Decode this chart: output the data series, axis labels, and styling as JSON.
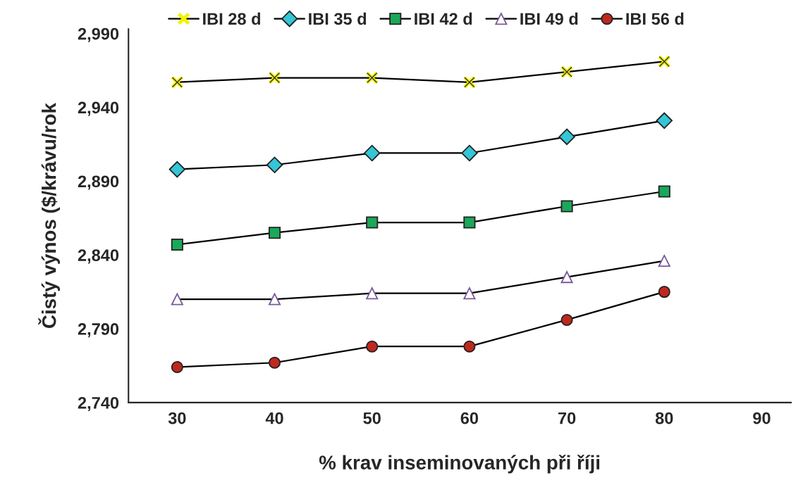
{
  "chart_data": {
    "type": "line",
    "xlabel": "% krav inseminovaných při říji",
    "ylabel": "Čistý výnos ($/krávu/rok",
    "x": [
      30,
      40,
      50,
      60,
      70,
      80
    ],
    "xlim": [
      25,
      93
    ],
    "xticks": [
      30,
      40,
      50,
      60,
      70,
      80,
      90
    ],
    "ylim": [
      2740,
      2993
    ],
    "yticks": [
      {
        "value": 2740,
        "label": "2,740"
      },
      {
        "value": 2790,
        "label": "2,790"
      },
      {
        "value": 2840,
        "label": "2,840"
      },
      {
        "value": 2890,
        "label": "2,890"
      },
      {
        "value": 2940,
        "label": "2,940"
      },
      {
        "value": 2990,
        "label": "2,990"
      }
    ],
    "grid": false,
    "legend": "top",
    "series": [
      {
        "name": "IBI 28 d",
        "color": "#f2f200",
        "marker": "cross",
        "values": [
          2957,
          2960,
          2960,
          2957,
          2964,
          2971
        ]
      },
      {
        "name": "IBI 35 d",
        "color": "#33c6d6",
        "marker": "diamond",
        "values": [
          2898,
          2901,
          2909,
          2909,
          2920,
          2931
        ]
      },
      {
        "name": "IBI 42 d",
        "color": "#1aa85a",
        "marker": "square",
        "values": [
          2847,
          2855,
          2862,
          2862,
          2873,
          2883
        ]
      },
      {
        "name": "IBI 49 d",
        "color": "#ffffff",
        "marker": "triangle",
        "values": [
          2810,
          2810,
          2814,
          2814,
          2825,
          2836
        ]
      },
      {
        "name": "IBI 56 d",
        "color": "#c0281e",
        "marker": "circle",
        "values": [
          2764,
          2767,
          2778,
          2778,
          2796,
          2815
        ]
      }
    ]
  }
}
